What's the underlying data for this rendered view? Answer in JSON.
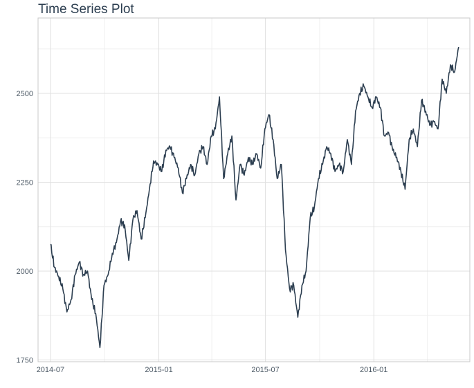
{
  "chart_data": {
    "type": "line",
    "title": "Time Series Plot",
    "xlabel": "",
    "ylabel": "",
    "x_range": [
      "2014-06-10",
      "2016-06-12"
    ],
    "ylim": [
      1745,
      2712
    ],
    "y_ticks": [
      1750,
      2000,
      2250,
      2500
    ],
    "y_minor_ticks": [
      1875,
      2125,
      2375,
      2625
    ],
    "x_ticks": [
      {
        "date": "2014-07-01",
        "label": "2014-07"
      },
      {
        "date": "2015-01-01",
        "label": "2015-01"
      },
      {
        "date": "2015-07-01",
        "label": "2015-07"
      },
      {
        "date": "2016-01-01",
        "label": "2016-01"
      }
    ],
    "x_minor_ticks": [
      "2014-10-01",
      "2015-04-01",
      "2015-10-01",
      "2016-04-01"
    ],
    "grid": true,
    "line_color": "#2c3e50",
    "series": [
      {
        "x": [
          "2014-07-01",
          "2014-07-08",
          "2014-07-15",
          "2014-07-22",
          "2014-07-29",
          "2014-08-05",
          "2014-08-12",
          "2014-08-19",
          "2014-08-26",
          "2014-09-02",
          "2014-09-09",
          "2014-09-16",
          "2014-09-23",
          "2014-09-30",
          "2014-10-07",
          "2014-10-14",
          "2014-10-21",
          "2014-10-28",
          "2014-11-04",
          "2014-11-11",
          "2014-11-18",
          "2014-11-25",
          "2014-12-02",
          "2014-12-09",
          "2014-12-16",
          "2014-12-23",
          "2014-12-30",
          "2015-01-06",
          "2015-01-13",
          "2015-01-20",
          "2015-01-27",
          "2015-02-03",
          "2015-02-10",
          "2015-02-17",
          "2015-02-24",
          "2015-03-03",
          "2015-03-10",
          "2015-03-17",
          "2015-03-24",
          "2015-03-31",
          "2015-04-07",
          "2015-04-14",
          "2015-04-21",
          "2015-04-28",
          "2015-05-05",
          "2015-05-12",
          "2015-05-19",
          "2015-05-26",
          "2015-06-02",
          "2015-06-09",
          "2015-06-16",
          "2015-06-23",
          "2015-06-30",
          "2015-07-07",
          "2015-07-14",
          "2015-07-21",
          "2015-07-28",
          "2015-08-04",
          "2015-08-11",
          "2015-08-18",
          "2015-08-25",
          "2015-09-01",
          "2015-09-08",
          "2015-09-15",
          "2015-09-22",
          "2015-09-29",
          "2015-10-06",
          "2015-10-13",
          "2015-10-20",
          "2015-10-27",
          "2015-11-03",
          "2015-11-10",
          "2015-11-17",
          "2015-11-24",
          "2015-12-01",
          "2015-12-08",
          "2015-12-15",
          "2015-12-22",
          "2015-12-29",
          "2016-01-05",
          "2016-01-12",
          "2016-01-19",
          "2016-01-26",
          "2016-02-02",
          "2016-02-09",
          "2016-02-16",
          "2016-02-23",
          "2016-03-01",
          "2016-03-08",
          "2016-03-15",
          "2016-03-22",
          "2016-03-29",
          "2016-04-05",
          "2016-04-12",
          "2016-04-19",
          "2016-04-26",
          "2016-05-03",
          "2016-05-10",
          "2016-05-17",
          "2016-05-24"
        ],
        "y": [
          2075,
          2010,
          1985,
          1950,
          1885,
          1920,
          1990,
          2025,
          1990,
          2000,
          1920,
          1880,
          1785,
          1960,
          1990,
          2050,
          2080,
          2140,
          2130,
          2030,
          2145,
          2170,
          2090,
          2150,
          2230,
          2310,
          2300,
          2280,
          2340,
          2350,
          2320,
          2290,
          2220,
          2260,
          2300,
          2270,
          2330,
          2350,
          2300,
          2380,
          2400,
          2490,
          2260,
          2330,
          2380,
          2200,
          2300,
          2270,
          2320,
          2300,
          2330,
          2290,
          2400,
          2440,
          2370,
          2260,
          2300,
          2060,
          1950,
          1960,
          1870,
          1960,
          2000,
          2150,
          2180,
          2260,
          2300,
          2350,
          2330,
          2280,
          2300,
          2280,
          2370,
          2300,
          2450,
          2500,
          2520,
          2490,
          2460,
          2490,
          2460,
          2380,
          2390,
          2340,
          2320,
          2280,
          2230,
          2370,
          2400,
          2350,
          2480,
          2450,
          2410,
          2420,
          2400,
          2540,
          2500,
          2580,
          2560,
          2630
        ]
      }
    ]
  }
}
